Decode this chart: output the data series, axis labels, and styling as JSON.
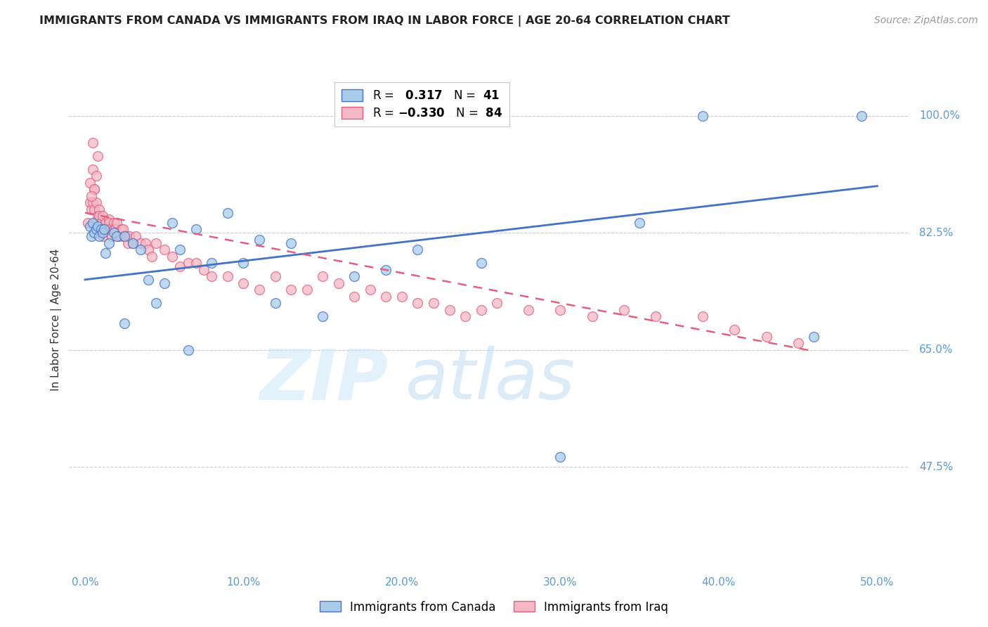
{
  "title": "IMMIGRANTS FROM CANADA VS IMMIGRANTS FROM IRAQ IN LABOR FORCE | AGE 20-64 CORRELATION CHART",
  "source": "Source: ZipAtlas.com",
  "ylabel": "In Labor Force | Age 20-64",
  "xlabel_ticks": [
    "0.0%",
    "10.0%",
    "20.0%",
    "30.0%",
    "40.0%",
    "50.0%"
  ],
  "ytick_labels": [
    "47.5%",
    "65.0%",
    "82.5%",
    "100.0%"
  ],
  "ytick_values": [
    0.475,
    0.65,
    0.825,
    1.0
  ],
  "xtick_values": [
    0.0,
    0.1,
    0.2,
    0.3,
    0.4,
    0.5
  ],
  "xlim": [
    -0.01,
    0.52
  ],
  "ylim": [
    0.32,
    1.07
  ],
  "canada_R": 0.317,
  "canada_N": 41,
  "iraq_R": -0.33,
  "iraq_N": 84,
  "canada_color": "#A8CCEA",
  "iraq_color": "#F5B8C4",
  "canada_line_color": "#4472C4",
  "iraq_line_color": "#E06080",
  "canada_line_x0": 0.0,
  "canada_line_y0": 0.755,
  "canada_line_x1": 0.5,
  "canada_line_y1": 0.895,
  "iraq_line_x0": 0.0,
  "iraq_line_y0": 0.855,
  "iraq_line_x1": 0.46,
  "iraq_line_y1": 0.648,
  "canada_x": [
    0.003,
    0.004,
    0.005,
    0.006,
    0.007,
    0.008,
    0.009,
    0.01,
    0.011,
    0.012,
    0.013,
    0.015,
    0.018,
    0.02,
    0.025,
    0.03,
    0.035,
    0.04,
    0.05,
    0.055,
    0.06,
    0.07,
    0.08,
    0.09,
    0.1,
    0.11,
    0.12,
    0.13,
    0.15,
    0.17,
    0.19,
    0.21,
    0.25,
    0.3,
    0.35,
    0.39,
    0.46,
    0.49,
    0.025,
    0.045,
    0.065
  ],
  "canada_y": [
    0.835,
    0.82,
    0.84,
    0.825,
    0.83,
    0.835,
    0.82,
    0.83,
    0.825,
    0.83,
    0.795,
    0.81,
    0.825,
    0.82,
    0.82,
    0.81,
    0.8,
    0.755,
    0.75,
    0.84,
    0.8,
    0.83,
    0.78,
    0.855,
    0.78,
    0.815,
    0.72,
    0.81,
    0.7,
    0.76,
    0.77,
    0.8,
    0.78,
    0.49,
    0.84,
    1.0,
    0.67,
    1.0,
    0.69,
    0.72,
    0.65
  ],
  "iraq_x": [
    0.002,
    0.003,
    0.004,
    0.005,
    0.005,
    0.006,
    0.006,
    0.007,
    0.007,
    0.008,
    0.008,
    0.009,
    0.009,
    0.01,
    0.01,
    0.011,
    0.011,
    0.012,
    0.012,
    0.013,
    0.014,
    0.015,
    0.015,
    0.016,
    0.017,
    0.018,
    0.018,
    0.019,
    0.02,
    0.021,
    0.022,
    0.023,
    0.024,
    0.025,
    0.026,
    0.027,
    0.028,
    0.03,
    0.032,
    0.035,
    0.038,
    0.04,
    0.042,
    0.045,
    0.05,
    0.055,
    0.06,
    0.065,
    0.07,
    0.075,
    0.08,
    0.09,
    0.1,
    0.11,
    0.12,
    0.13,
    0.14,
    0.15,
    0.16,
    0.17,
    0.18,
    0.19,
    0.2,
    0.21,
    0.22,
    0.23,
    0.24,
    0.25,
    0.26,
    0.28,
    0.3,
    0.32,
    0.34,
    0.36,
    0.39,
    0.41,
    0.43,
    0.45,
    0.005,
    0.008,
    0.003,
    0.006,
    0.004,
    0.007
  ],
  "iraq_y": [
    0.84,
    0.87,
    0.86,
    0.87,
    0.92,
    0.86,
    0.89,
    0.87,
    0.84,
    0.85,
    0.83,
    0.86,
    0.85,
    0.84,
    0.84,
    0.85,
    0.82,
    0.83,
    0.83,
    0.84,
    0.83,
    0.845,
    0.84,
    0.83,
    0.82,
    0.84,
    0.83,
    0.83,
    0.84,
    0.82,
    0.82,
    0.83,
    0.83,
    0.82,
    0.82,
    0.81,
    0.82,
    0.81,
    0.82,
    0.81,
    0.81,
    0.8,
    0.79,
    0.81,
    0.8,
    0.79,
    0.775,
    0.78,
    0.78,
    0.77,
    0.76,
    0.76,
    0.75,
    0.74,
    0.76,
    0.74,
    0.74,
    0.76,
    0.75,
    0.73,
    0.74,
    0.73,
    0.73,
    0.72,
    0.72,
    0.71,
    0.7,
    0.71,
    0.72,
    0.71,
    0.71,
    0.7,
    0.71,
    0.7,
    0.7,
    0.68,
    0.67,
    0.66,
    0.96,
    0.94,
    0.9,
    0.89,
    0.88,
    0.91
  ]
}
